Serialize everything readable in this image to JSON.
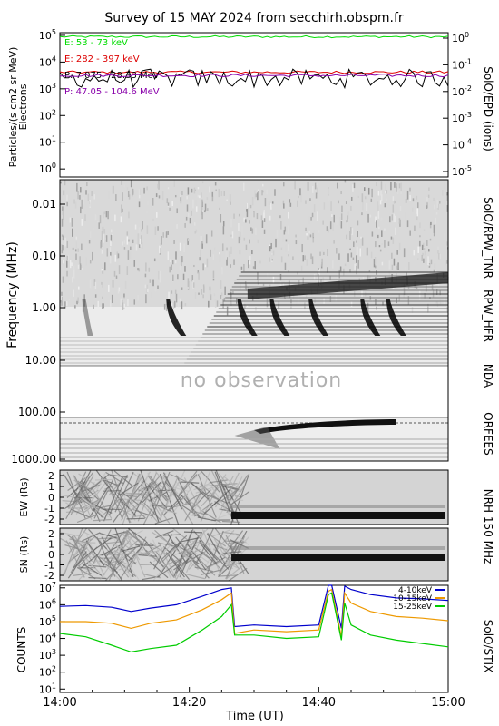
{
  "title": "Survey of 15 MAY 2024 from secchirh.obspm.fr",
  "time_axis": {
    "label": "Time (UT)",
    "ticks": [
      "14:00",
      "14:20",
      "14:40",
      "15:00"
    ],
    "tick_minutes": [
      0,
      20,
      40,
      60
    ]
  },
  "chart_data": [
    {
      "type": "line",
      "panel": "epd",
      "right_label": "SolO/EPD (ions)",
      "ylabel": "Particles/(s cm2 sr MeV)",
      "ylabel2": "Electrons",
      "yscale": "log",
      "ylim_exp": [
        -0.3,
        5.1
      ],
      "ytick_labels": [
        "10^0",
        "10^1",
        "10^2",
        "10^3",
        "10^4",
        "10^5"
      ],
      "right_ytick_labels": [
        "10^-5",
        "10^-4",
        "10^-3",
        "10^-2",
        "10^-1",
        "10^0"
      ],
      "series": [
        {
          "name": "E: 53 - 73 keV",
          "color": "#00dd00",
          "log10_level": 4.95,
          "jitter": 0.04
        },
        {
          "name": "E: 282 - 397 keV",
          "color": "#dd0000",
          "log10_level": 3.62,
          "jitter": 0.05
        },
        {
          "name": "P: 7.075 - 28.33 MeV",
          "color": "#000000",
          "log10_level": 3.25,
          "jitter": 0.35
        },
        {
          "name": "P: 47.05 - 104.6 MeV",
          "color": "#8800aa",
          "log10_level": 3.5,
          "jitter": 0.05
        }
      ]
    },
    {
      "type": "heatmap",
      "panel": "radio",
      "ylabel": "Frequency (MHz)",
      "yscale": "log",
      "right_labels": [
        "SolO/RPW_TNR",
        "RPW_HFR",
        "NDA",
        "ORFEES"
      ],
      "ytick_labels": [
        "0.01",
        "0.10",
        "1.00",
        "10.00",
        "100.00",
        "1000.00"
      ],
      "no_data_text": "no observation",
      "bursts_start_min": [
        4,
        17,
        28,
        33,
        39,
        47,
        51
      ]
    },
    {
      "type": "heatmap",
      "panel": "nrh_ew",
      "ylabel": "EW (Rs)",
      "ytick_labels": [
        "2",
        "1",
        "0",
        "-1",
        "-2"
      ]
    },
    {
      "type": "heatmap",
      "panel": "nrh_sn",
      "ylabel": "SN (Rs)",
      "right_label": "NRH 150 MHz",
      "ytick_labels": [
        "2",
        "1",
        "0",
        "-1",
        "-2"
      ]
    },
    {
      "type": "line",
      "panel": "stix",
      "ylabel": "COUNTS",
      "right_label": "SolO/STIX",
      "yscale": "log",
      "ylim_exp": [
        0.8,
        7.15
      ],
      "ytick_labels": [
        "10^1",
        "10^2",
        "10^3",
        "10^4",
        "10^5",
        "10^6",
        "10^7"
      ],
      "x_minutes": [
        0,
        4,
        8,
        11,
        14,
        18,
        22,
        25,
        26.5,
        27,
        30,
        35,
        40,
        41.5,
        42,
        43.5,
        44,
        45,
        48,
        52,
        56,
        60
      ],
      "series": [
        {
          "name": "4-10keV",
          "color": "#0000cc",
          "log10_values": [
            5.9,
            5.95,
            5.85,
            5.6,
            5.8,
            6.0,
            6.5,
            6.9,
            7.0,
            4.7,
            4.8,
            4.7,
            4.8,
            7.15,
            7.15,
            4.6,
            7.1,
            6.9,
            6.6,
            6.4,
            6.35,
            6.25
          ]
        },
        {
          "name": "10-15keV",
          "color": "#ee9900",
          "log10_values": [
            5.0,
            5.0,
            4.9,
            4.6,
            4.9,
            5.1,
            5.7,
            6.3,
            6.7,
            4.3,
            4.5,
            4.4,
            4.5,
            6.8,
            6.9,
            4.1,
            6.7,
            6.1,
            5.6,
            5.3,
            5.2,
            5.05
          ]
        },
        {
          "name": "15-25keV",
          "color": "#00cc00",
          "log10_values": [
            4.3,
            4.1,
            3.6,
            3.2,
            3.4,
            3.6,
            4.5,
            5.3,
            6.0,
            4.2,
            4.2,
            4.0,
            4.1,
            6.6,
            6.7,
            3.9,
            6.1,
            4.8,
            4.2,
            3.9,
            3.7,
            3.5
          ]
        }
      ]
    }
  ]
}
